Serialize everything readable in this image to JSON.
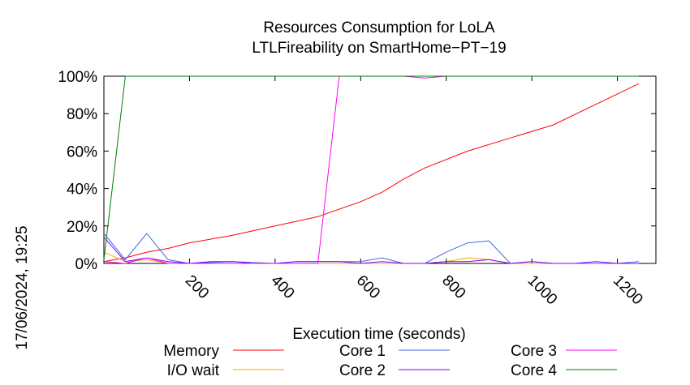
{
  "chart_data": {
    "type": "line",
    "title_line1": "Resources Consumption for LoLA",
    "title_line2": "LTLFireability on SmartHome−PT−19",
    "xlabel": "Execution time (seconds)",
    "ylabel": "",
    "side_label": "17/06/2024, 19:25",
    "xlim": [
      0,
      1290
    ],
    "ylim": [
      0,
      100
    ],
    "x_ticks": [
      200,
      400,
      600,
      800,
      1000,
      1200
    ],
    "x_tick_labels": [
      "200",
      "400",
      "600",
      "800",
      "1000",
      "1200"
    ],
    "y_ticks": [
      0,
      20,
      40,
      60,
      80,
      100
    ],
    "y_tick_labels": [
      "0%",
      "20%",
      "40%",
      "60%",
      "80%",
      "100%"
    ],
    "grid": false,
    "legend_placement": "bottom",
    "series": [
      {
        "name": "Memory",
        "color": "#ff0000",
        "x": [
          0,
          50,
          100,
          150,
          200,
          300,
          400,
          500,
          600,
          650,
          700,
          750,
          850,
          950,
          1050,
          1150,
          1250
        ],
        "y": [
          1,
          3,
          6,
          8,
          11,
          15,
          20,
          25,
          33,
          38,
          45,
          51,
          60,
          67,
          74,
          85,
          96
        ]
      },
      {
        "name": "I/O wait",
        "color": "#ffa500",
        "x": [
          0,
          50,
          100,
          150,
          200,
          300,
          400,
          500,
          600,
          650,
          700,
          750,
          800,
          850,
          900,
          950,
          1000,
          1050,
          1100,
          1150,
          1250
        ],
        "y": [
          6,
          1,
          2,
          0,
          0,
          0,
          0,
          0,
          0,
          0,
          0,
          0,
          1,
          3,
          2,
          0,
          0,
          0,
          0,
          0,
          0
        ]
      },
      {
        "name": "Core 1",
        "color": "#4169e1",
        "x": [
          0,
          50,
          100,
          150,
          200,
          300,
          400,
          450,
          500,
          550,
          600,
          650,
          700,
          750,
          800,
          850,
          900,
          950,
          1000,
          1050,
          1100,
          1150,
          1200,
          1250
        ],
        "y": [
          16,
          2,
          16,
          2,
          0,
          1,
          0,
          1,
          1,
          1,
          1,
          3,
          0,
          0,
          6,
          11,
          12,
          0,
          1,
          0,
          0,
          0,
          0,
          1
        ]
      },
      {
        "name": "Core 2",
        "color": "#8000ff",
        "x": [
          0,
          50,
          100,
          150,
          200,
          250,
          300,
          350,
          400,
          450,
          500,
          550,
          600,
          650,
          700,
          750,
          800,
          850,
          900,
          950,
          1000,
          1050,
          1100,
          1150,
          1200,
          1250
        ],
        "y": [
          14,
          1,
          3,
          1,
          0,
          1,
          1,
          0,
          0,
          1,
          1,
          1,
          0,
          1,
          0,
          0,
          1,
          1,
          2,
          0,
          1,
          0,
          0,
          1,
          0,
          0
        ]
      },
      {
        "name": "Core 3",
        "color": "#ff00ff",
        "x": [
          0,
          50,
          100,
          150,
          200,
          250,
          300,
          350,
          400,
          450,
          500,
          550,
          600,
          650,
          700,
          750,
          800,
          850,
          900,
          950,
          1000,
          1050,
          1100,
          1150,
          1200,
          1250
        ],
        "y": [
          1,
          0,
          3,
          0,
          0,
          0,
          0,
          0,
          0,
          0,
          0,
          100,
          100,
          100,
          100,
          99,
          100,
          100,
          100,
          100,
          100,
          100,
          100,
          100,
          100,
          100
        ]
      },
      {
        "name": "Core 4",
        "color": "#008000",
        "x": [
          0,
          50,
          100,
          150,
          200,
          300,
          400,
          500,
          600,
          700,
          800,
          900,
          1000,
          1100,
          1200,
          1250
        ],
        "y": [
          2,
          100,
          100,
          100,
          100,
          100,
          100,
          100,
          100,
          100,
          100,
          100,
          100,
          100,
          100,
          100
        ]
      }
    ]
  }
}
